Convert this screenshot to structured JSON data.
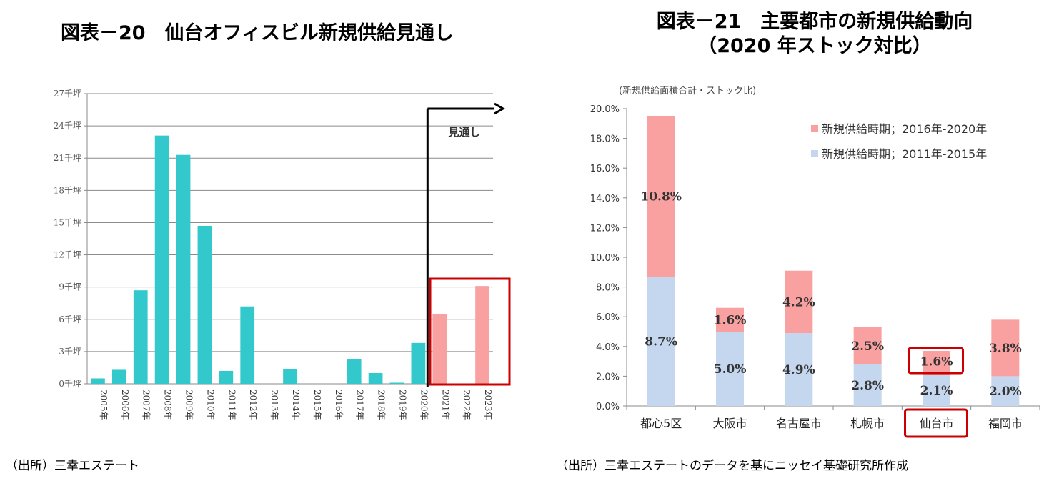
{
  "titles": {
    "left": "図表－20　仙台オフィスビル新規供給見通し",
    "right_line1": "図表－21　主要都市の新規供給動向",
    "right_line2": "（2020 年ストック対比）"
  },
  "sources": {
    "left": "（出所）三幸エステート",
    "right": "（出所）三幸エステートのデータを基にニッセイ基礎研究所作成"
  },
  "colors": {
    "actual": "#33c9cc",
    "forecast": "#f9a0a0",
    "period_2016_2020": "#f9a0a0",
    "period_2011_2015": "#c5d7ef",
    "highlight_box": "#cc0000"
  },
  "chart_data": [
    {
      "type": "bar",
      "categories": [
        "2005年",
        "2006年",
        "2007年",
        "2008年",
        "2009年",
        "2010年",
        "2011年",
        "2012年",
        "2013年",
        "2014年",
        "2015年",
        "2016年",
        "2017年",
        "2018年",
        "2019年",
        "2020年",
        "2021年",
        "2022年",
        "2023年"
      ],
      "values": [
        0.5,
        1.3,
        8.7,
        23.1,
        21.3,
        14.7,
        1.2,
        7.2,
        0,
        1.4,
        0,
        0,
        2.3,
        1.0,
        0.1,
        3.8,
        6.5,
        0,
        9.1
      ],
      "forecast_from": "2021年",
      "y_ticks": [
        "0千坪",
        "3千坪",
        "6千坪",
        "9千坪",
        "12千坪",
        "15千坪",
        "18千坪",
        "21千坪",
        "24千坪",
        "27千坪"
      ],
      "ylim": [
        0,
        27
      ],
      "grid": true,
      "annotation": "見通し"
    },
    {
      "type": "bar",
      "stacked": true,
      "ylabel": "(新規供給面積合計・ストック比)",
      "categories": [
        "都心5区",
        "大阪市",
        "名古屋市",
        "札幌市",
        "仙台市",
        "福岡市"
      ],
      "series": [
        {
          "name": "新規供給時期；2011年-2015年",
          "values": [
            8.7,
            5.0,
            4.9,
            2.8,
            2.1,
            2.0
          ],
          "labels": [
            "8.7%",
            "5.0%",
            "4.9%",
            "2.8%",
            "2.1%",
            "2.0%"
          ]
        },
        {
          "name": "新規供給時期；2016年-2020年",
          "values": [
            10.8,
            1.6,
            4.2,
            2.5,
            1.6,
            3.8
          ],
          "labels": [
            "10.8%",
            "1.6%",
            "4.2%",
            "2.5%",
            "1.6%",
            "3.8%"
          ]
        }
      ],
      "y_ticks": [
        "0.0%",
        "2.0%",
        "4.0%",
        "6.0%",
        "8.0%",
        "10.0%",
        "12.0%",
        "14.0%",
        "16.0%",
        "18.0%",
        "20.0%"
      ],
      "ylim": [
        0,
        20
      ],
      "legend_position": "top-right",
      "highlight": "仙台市"
    }
  ]
}
